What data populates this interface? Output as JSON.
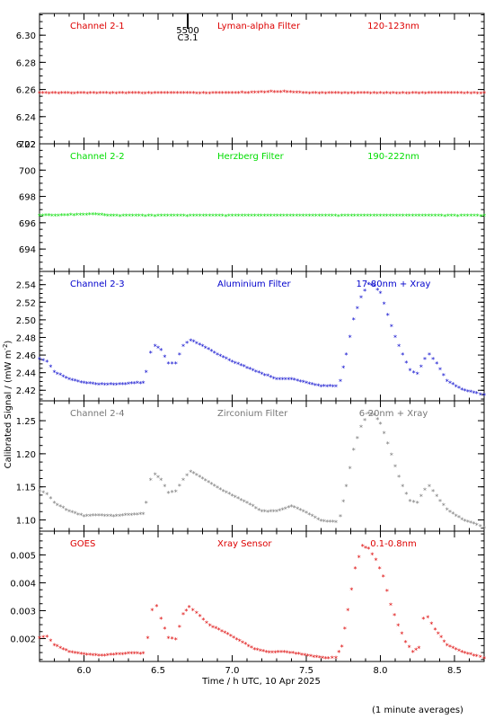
{
  "chart_data": {
    "type": "scatter",
    "xlabel": "Time / h UTC, 10 Apr 2025",
    "ylabel": "Calibrated Signal / (mW m",
    "ylabel_sup": "-2",
    "ylabel_end": ")",
    "note": "(1 minute averages)",
    "xlim": [
      5.7,
      8.7
    ],
    "xticks": [
      "6.0",
      "6.5",
      "7.0",
      "7.5",
      "8.0",
      "8.5"
    ],
    "marker": {
      "label_top": "5500",
      "label_bottom": "C3.1",
      "x": 6.7
    },
    "panels": [
      {
        "channel": "Channel 2-1",
        "filter": "Lyman-alpha Filter",
        "band": "120-123nm",
        "color": "#dd0000",
        "ylim": [
          6.22,
          6.316
        ],
        "yticks": [
          "6.22",
          "6.24",
          "6.26",
          "6.28",
          "6.30"
        ],
        "points": [
          [
            5.7,
            6.257
          ],
          [
            6.0,
            6.257
          ],
          [
            6.5,
            6.257
          ],
          [
            7.0,
            6.257
          ],
          [
            7.35,
            6.258
          ],
          [
            7.5,
            6.257
          ],
          [
            8.0,
            6.257
          ],
          [
            8.5,
            6.257
          ],
          [
            8.7,
            6.257
          ]
        ]
      },
      {
        "channel": "Channel 2-2",
        "filter": "Herzberg Filter",
        "band": "190-222nm",
        "color": "#00dd00",
        "ylim": [
          692.3,
          702
        ],
        "yticks": [
          "694",
          "696",
          "698",
          "700",
          "702"
        ],
        "points": [
          [
            5.7,
            696.5
          ],
          [
            6.08,
            696.6
          ],
          [
            6.2,
            696.5
          ],
          [
            6.5,
            696.5
          ],
          [
            7.0,
            696.5
          ],
          [
            7.5,
            696.5
          ],
          [
            8.0,
            696.5
          ],
          [
            8.5,
            696.5
          ],
          [
            8.7,
            696.5
          ]
        ]
      },
      {
        "channel": "Channel 2-3",
        "filter": "Aluminium Filter",
        "band": "17-80nm + Xray",
        "color": "#0000cc",
        "ylim": [
          2.408,
          2.555
        ],
        "yticks": [
          "2.42",
          "2.44",
          "2.46",
          "2.48",
          "2.50",
          "2.52",
          "2.54"
        ],
        "points": [
          [
            5.7,
            2.455
          ],
          [
            5.75,
            2.452
          ],
          [
            5.8,
            2.44
          ],
          [
            5.9,
            2.432
          ],
          [
            6.0,
            2.428
          ],
          [
            6.1,
            2.426
          ],
          [
            6.2,
            2.426
          ],
          [
            6.3,
            2.427
          ],
          [
            6.4,
            2.428
          ],
          [
            6.42,
            2.44
          ],
          [
            6.45,
            2.462
          ],
          [
            6.48,
            2.47
          ],
          [
            6.52,
            2.465
          ],
          [
            6.57,
            2.45
          ],
          [
            6.62,
            2.45
          ],
          [
            6.67,
            2.47
          ],
          [
            6.72,
            2.476
          ],
          [
            6.8,
            2.47
          ],
          [
            6.9,
            2.46
          ],
          [
            7.0,
            2.452
          ],
          [
            7.1,
            2.445
          ],
          [
            7.2,
            2.438
          ],
          [
            7.3,
            2.432
          ],
          [
            7.4,
            2.432
          ],
          [
            7.5,
            2.428
          ],
          [
            7.6,
            2.424
          ],
          [
            7.7,
            2.424
          ],
          [
            7.73,
            2.43
          ],
          [
            7.77,
            2.46
          ],
          [
            7.82,
            2.5
          ],
          [
            7.87,
            2.525
          ],
          [
            7.92,
            2.54
          ],
          [
            7.96,
            2.538
          ],
          [
            8.0,
            2.53
          ],
          [
            8.05,
            2.505
          ],
          [
            8.1,
            2.48
          ],
          [
            8.15,
            2.46
          ],
          [
            8.2,
            2.442
          ],
          [
            8.25,
            2.438
          ],
          [
            8.3,
            2.455
          ],
          [
            8.33,
            2.46
          ],
          [
            8.38,
            2.45
          ],
          [
            8.45,
            2.43
          ],
          [
            8.55,
            2.42
          ],
          [
            8.65,
            2.416
          ],
          [
            8.7,
            2.414
          ]
        ]
      },
      {
        "channel": "Channel 2-4",
        "filter": "Zirconium Filter",
        "band": "6-20nm + Xray",
        "color": "#777777",
        "ylim": [
          1.083,
          1.28
        ],
        "yticks": [
          "1.10",
          "1.15",
          "1.20",
          "1.25"
        ],
        "points": [
          [
            5.7,
            1.143
          ],
          [
            5.75,
            1.138
          ],
          [
            5.8,
            1.125
          ],
          [
            5.9,
            1.112
          ],
          [
            6.0,
            1.105
          ],
          [
            6.1,
            1.106
          ],
          [
            6.2,
            1.105
          ],
          [
            6.3,
            1.107
          ],
          [
            6.4,
            1.108
          ],
          [
            6.42,
            1.125
          ],
          [
            6.45,
            1.16
          ],
          [
            6.48,
            1.168
          ],
          [
            6.52,
            1.16
          ],
          [
            6.57,
            1.14
          ],
          [
            6.62,
            1.142
          ],
          [
            6.67,
            1.16
          ],
          [
            6.72,
            1.172
          ],
          [
            6.8,
            1.162
          ],
          [
            6.9,
            1.148
          ],
          [
            7.0,
            1.136
          ],
          [
            7.1,
            1.125
          ],
          [
            7.2,
            1.112
          ],
          [
            7.3,
            1.112
          ],
          [
            7.4,
            1.12
          ],
          [
            7.5,
            1.11
          ],
          [
            7.6,
            1.098
          ],
          [
            7.7,
            1.096
          ],
          [
            7.73,
            1.105
          ],
          [
            7.77,
            1.15
          ],
          [
            7.82,
            1.205
          ],
          [
            7.87,
            1.24
          ],
          [
            7.92,
            1.26
          ],
          [
            7.96,
            1.258
          ],
          [
            8.0,
            1.245
          ],
          [
            8.05,
            1.215
          ],
          [
            8.1,
            1.18
          ],
          [
            8.15,
            1.15
          ],
          [
            8.2,
            1.128
          ],
          [
            8.25,
            1.125
          ],
          [
            8.3,
            1.145
          ],
          [
            8.33,
            1.15
          ],
          [
            8.38,
            1.135
          ],
          [
            8.45,
            1.115
          ],
          [
            8.55,
            1.1
          ],
          [
            8.65,
            1.092
          ],
          [
            8.7,
            1.087
          ]
        ]
      },
      {
        "channel": "GOES",
        "filter": "Xray Sensor",
        "band": "0.1-0.8nm",
        "color": "#dd0000",
        "ylim": [
          0.00118,
          0.00585
        ],
        "yticks": [
          "0.002",
          "0.003",
          "0.004",
          "0.005"
        ],
        "points": [
          [
            5.7,
            0.002
          ],
          [
            5.75,
            0.00205
          ],
          [
            5.8,
            0.00175
          ],
          [
            5.9,
            0.0015
          ],
          [
            6.0,
            0.00142
          ],
          [
            6.1,
            0.00138
          ],
          [
            6.2,
            0.0014
          ],
          [
            6.3,
            0.00145
          ],
          [
            6.4,
            0.00145
          ],
          [
            6.43,
            0.002
          ],
          [
            6.46,
            0.003
          ],
          [
            6.49,
            0.00315
          ],
          [
            6.52,
            0.0027
          ],
          [
            6.57,
            0.002
          ],
          [
            6.62,
            0.00195
          ],
          [
            6.67,
            0.00285
          ],
          [
            6.71,
            0.00312
          ],
          [
            6.76,
            0.0029
          ],
          [
            6.85,
            0.00245
          ],
          [
            6.95,
            0.0022
          ],
          [
            7.05,
            0.0019
          ],
          [
            7.15,
            0.0016
          ],
          [
            7.25,
            0.00148
          ],
          [
            7.35,
            0.0015
          ],
          [
            7.45,
            0.00143
          ],
          [
            7.55,
            0.00133
          ],
          [
            7.65,
            0.00128
          ],
          [
            7.7,
            0.0013
          ],
          [
            7.74,
            0.0017
          ],
          [
            7.78,
            0.003
          ],
          [
            7.83,
            0.0045
          ],
          [
            7.88,
            0.0053
          ],
          [
            7.92,
            0.0052
          ],
          [
            7.97,
            0.0048
          ],
          [
            8.02,
            0.0042
          ],
          [
            8.07,
            0.0032
          ],
          [
            8.12,
            0.00245
          ],
          [
            8.17,
            0.00185
          ],
          [
            8.22,
            0.0015
          ],
          [
            8.26,
            0.00165
          ],
          [
            8.29,
            0.0027
          ],
          [
            8.32,
            0.00275
          ],
          [
            8.37,
            0.0023
          ],
          [
            8.45,
            0.00175
          ],
          [
            8.55,
            0.0015
          ],
          [
            8.65,
            0.00135
          ],
          [
            8.7,
            0.00128
          ]
        ]
      }
    ]
  }
}
